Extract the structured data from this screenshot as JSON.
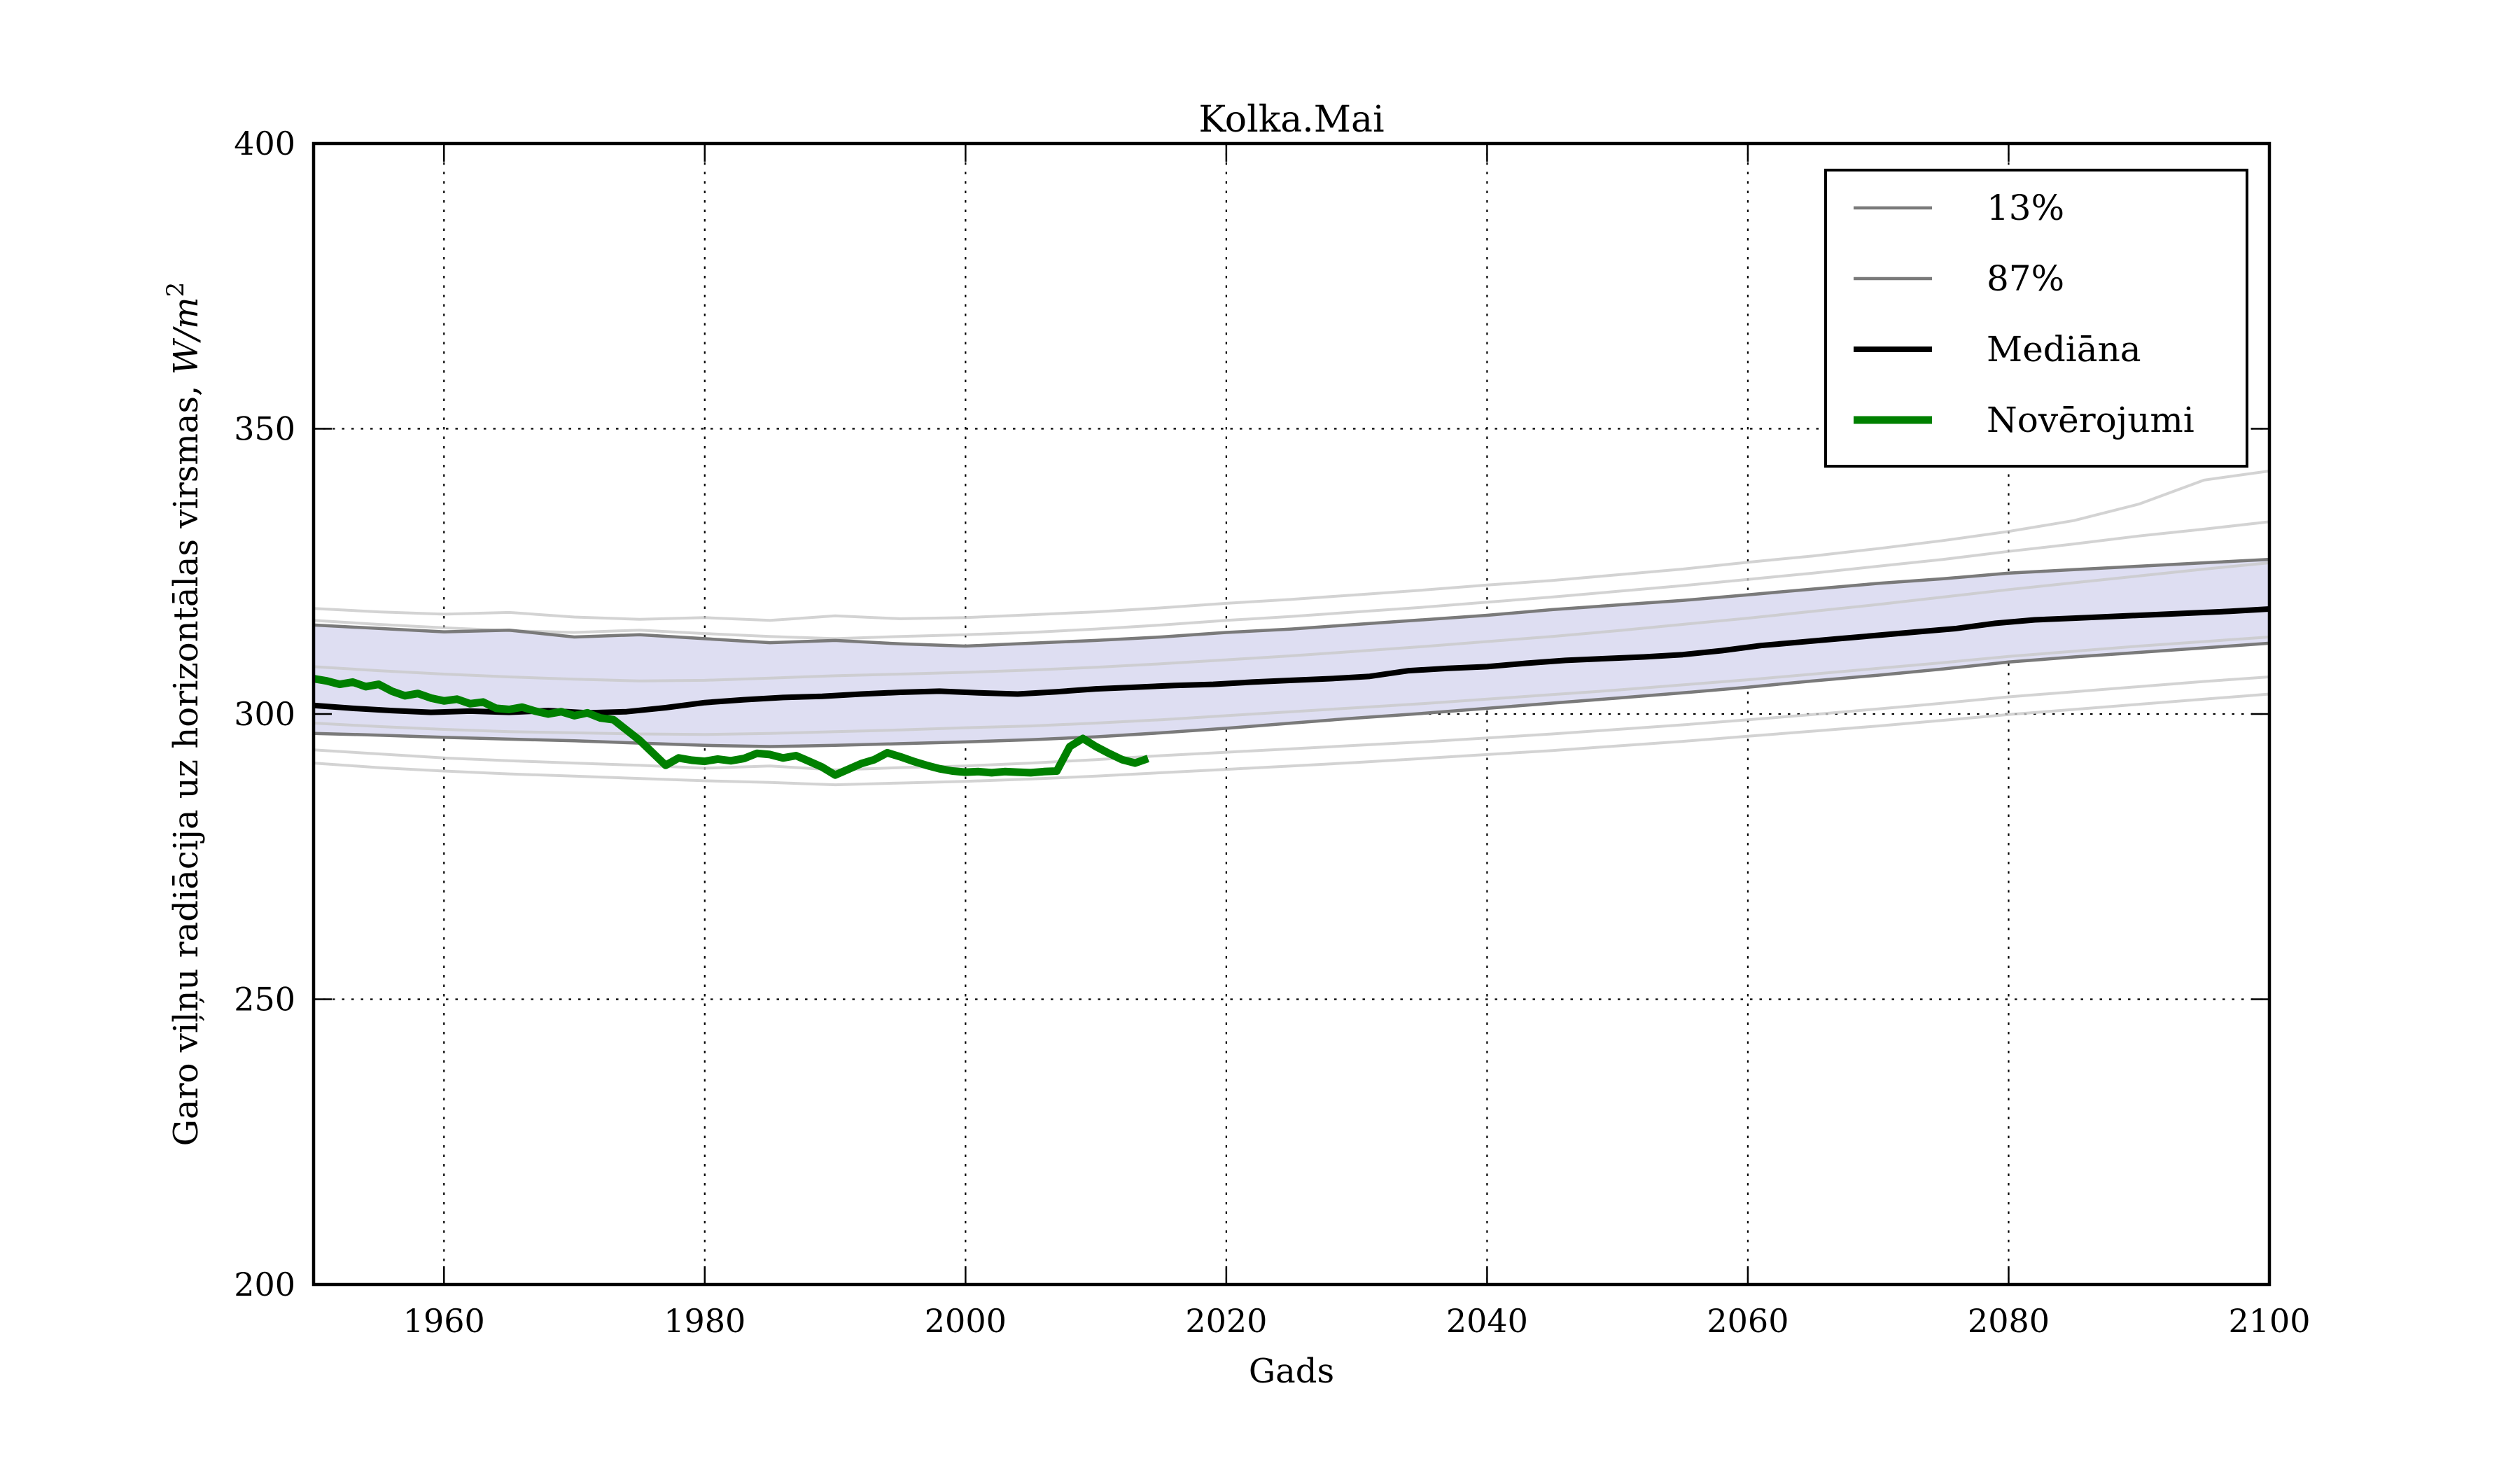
{
  "figure": {
    "title": "Kolka.Mai",
    "xlabel": "Gads",
    "ylabel_main": "Garo viļņu radiācija uz horizontālas virsmas, ",
    "ylabel_unit": "W/m",
    "ylabel_unit_exp": "2",
    "background_color": "#ffffff",
    "grid_color": "#000000",
    "axis_color": "#000000"
  },
  "legend": {
    "items": [
      {
        "label": "13%",
        "color": "#7a7a7a",
        "width": 4.5
      },
      {
        "label": "87%",
        "color": "#7a7a7a",
        "width": 4.5
      },
      {
        "label": "Mediāna",
        "color": "#000000",
        "width": 8
      },
      {
        "label": "Novērojumi",
        "color": "#008000",
        "width": 11
      }
    ]
  },
  "chart_data": {
    "type": "line",
    "title": "Kolka.Mai",
    "xlabel": "Gads",
    "ylabel": "Garo viļņu radiācija uz horizontālas virsmas, W/m²",
    "xlim": [
      1950,
      2100
    ],
    "ylim": [
      200,
      400
    ],
    "x_ticks": [
      1960,
      1980,
      2000,
      2020,
      2040,
      2060,
      2080,
      2100
    ],
    "y_ticks": [
      200,
      250,
      300,
      350,
      400
    ],
    "grid": "dotted",
    "legend_position": "upper right",
    "band": {
      "name": "13-87% percentile interval",
      "fill_color": "#dedef2",
      "edge_color": "#7a7a7a",
      "edge_width": 4.5,
      "x0": 1950,
      "dx": 5,
      "upper": [
        315.6,
        315.0,
        314.4,
        314.7,
        313.5,
        313.9,
        313.2,
        312.5,
        312.9,
        312.3,
        311.9,
        312.4,
        312.9,
        313.5,
        314.3,
        314.9,
        315.7,
        316.5,
        317.3,
        318.3,
        319.1,
        319.9,
        320.9,
        321.9,
        322.9,
        323.7,
        324.7,
        325.3,
        325.9,
        326.5,
        327.1
      ],
      "lower": [
        296.6,
        296.3,
        295.9,
        295.6,
        295.3,
        294.9,
        294.5,
        294.3,
        294.5,
        294.8,
        295.1,
        295.5,
        296.0,
        296.7,
        297.5,
        298.4,
        299.3,
        300.1,
        301.0,
        301.9,
        302.8,
        303.7,
        304.7,
        305.8,
        306.8,
        307.9,
        309.1,
        310.0,
        310.8,
        311.6,
        312.4
      ]
    },
    "series": [
      {
        "name": "Mediāna",
        "color": "#000000",
        "width": 8,
        "x0": 1950,
        "dx": 3,
        "y": [
          301.5,
          301.0,
          300.6,
          300.3,
          300.5,
          300.3,
          300.6,
          300.2,
          300.4,
          301.1,
          302.0,
          302.5,
          302.9,
          303.1,
          303.5,
          303.8,
          304.0,
          303.7,
          303.5,
          303.9,
          304.4,
          304.7,
          305.0,
          305.2,
          305.6,
          305.9,
          306.2,
          306.6,
          307.6,
          308.0,
          308.3,
          308.9,
          309.4,
          309.7,
          310.0,
          310.4,
          311.1,
          312.0,
          312.6,
          313.2,
          313.8,
          314.4,
          315.0,
          315.9,
          316.5,
          316.8,
          317.1,
          317.4,
          317.7,
          318.0,
          318.4
        ]
      },
      {
        "name": "Novērojumi",
        "color": "#008000",
        "width": 11,
        "x0": 1950,
        "dx": 1,
        "y": [
          306.2,
          305.8,
          305.2,
          305.6,
          304.8,
          305.2,
          304.0,
          303.2,
          303.6,
          302.8,
          302.3,
          302.6,
          301.8,
          302.1,
          301.0,
          300.8,
          301.2,
          300.5,
          300.0,
          300.4,
          299.7,
          300.2,
          299.3,
          299.0,
          297.2,
          295.4,
          293.2,
          291.0,
          292.3,
          291.9,
          291.7,
          292.1,
          291.8,
          292.2,
          293.1,
          292.9,
          292.3,
          292.7,
          291.7,
          290.7,
          289.3,
          290.3,
          291.3,
          292.0,
          293.2,
          292.5,
          291.7,
          291.0,
          290.4,
          290.0,
          289.8,
          289.9,
          289.7,
          289.9,
          289.8,
          289.7,
          289.9,
          290.0,
          294.3,
          295.7,
          294.3,
          293.1,
          292.0,
          291.4,
          292.2
        ]
      }
    ],
    "ensemble_runs": {
      "name": "individual model runs",
      "color": "#c8c8c8",
      "width": 4,
      "opacity": 0.8,
      "x0": 1950,
      "dx": 5,
      "runs": [
        [
          318.5,
          317.9,
          317.5,
          317.8,
          317.0,
          316.6,
          316.9,
          316.4,
          317.2,
          316.7,
          316.9,
          317.4,
          317.9,
          318.6,
          319.4,
          320.1,
          320.9,
          321.7,
          322.6,
          323.4,
          324.4,
          325.4,
          326.6,
          327.7,
          329.0,
          330.4,
          332.0,
          333.9,
          336.8,
          341.0,
          342.6
        ],
        [
          316.4,
          315.7,
          315.1,
          314.6,
          314.3,
          314.7,
          314.1,
          313.6,
          313.2,
          313.6,
          313.9,
          314.3,
          314.9,
          315.6,
          316.4,
          317.1,
          317.9,
          318.7,
          319.6,
          320.5,
          321.5,
          322.5,
          323.6,
          324.7,
          325.9,
          327.1,
          328.5,
          329.8,
          331.2,
          332.4,
          333.7
        ],
        [
          308.3,
          307.6,
          307.0,
          306.5,
          306.1,
          305.8,
          305.9,
          306.3,
          306.7,
          307.0,
          307.3,
          307.7,
          308.2,
          308.8,
          309.5,
          310.2,
          311.0,
          311.8,
          312.7,
          313.6,
          314.6,
          315.7,
          316.8,
          318.0,
          319.2,
          320.5,
          321.8,
          323.0,
          324.2,
          325.4,
          326.5
        ],
        [
          298.4,
          297.8,
          297.3,
          296.9,
          296.7,
          296.5,
          296.4,
          296.6,
          296.9,
          297.2,
          297.6,
          297.9,
          298.4,
          299.0,
          299.7,
          300.4,
          301.1,
          301.8,
          302.6,
          303.4,
          304.2,
          305.1,
          306.0,
          307.0,
          308.0,
          309.0,
          310.1,
          311.0,
          311.9,
          312.7,
          313.5
        ],
        [
          293.7,
          293.0,
          292.3,
          291.8,
          291.4,
          291.0,
          290.5,
          290.9,
          290.2,
          290.6,
          290.9,
          291.4,
          292.0,
          292.7,
          293.3,
          293.9,
          294.5,
          295.1,
          295.8,
          296.5,
          297.3,
          298.1,
          299.0,
          299.9,
          300.9,
          301.9,
          303.0,
          303.9,
          304.8,
          305.7,
          306.5
        ],
        [
          291.4,
          290.6,
          290.0,
          289.5,
          289.1,
          288.7,
          288.3,
          288.0,
          287.6,
          287.9,
          288.2,
          288.6,
          289.1,
          289.7,
          290.3,
          290.9,
          291.5,
          292.2,
          292.9,
          293.6,
          294.4,
          295.2,
          296.1,
          297.0,
          297.9,
          298.9,
          299.9,
          300.8,
          301.7,
          302.6,
          303.5
        ]
      ]
    }
  }
}
